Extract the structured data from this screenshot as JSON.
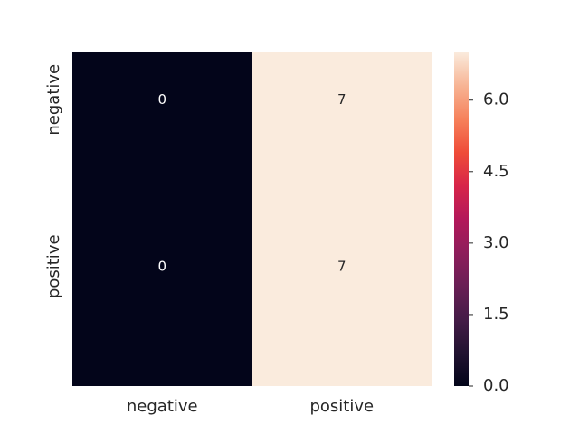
{
  "chart_data": {
    "type": "heatmap",
    "title": "",
    "xlabel": "",
    "ylabel": "",
    "x_categories": [
      "negative",
      "positive"
    ],
    "y_categories": [
      "negative",
      "positive"
    ],
    "values": [
      [
        0,
        7
      ],
      [
        0,
        7
      ]
    ],
    "annotations": [
      [
        "0",
        "7"
      ],
      [
        "0",
        "7"
      ]
    ],
    "colorbar": {
      "range": [
        0,
        7
      ],
      "ticks": [
        0.0,
        1.5,
        3.0,
        4.5,
        6.0
      ],
      "tick_labels": [
        "0.0",
        "1.5",
        "3.0",
        "4.5",
        "6.0"
      ],
      "colormap": "rocket",
      "position": "right"
    },
    "grid": false,
    "colors": {
      "low": "#03051a",
      "high": "#faebdd",
      "annotation_on_dark": "#ffffff",
      "annotation_on_light": "#262626"
    }
  }
}
